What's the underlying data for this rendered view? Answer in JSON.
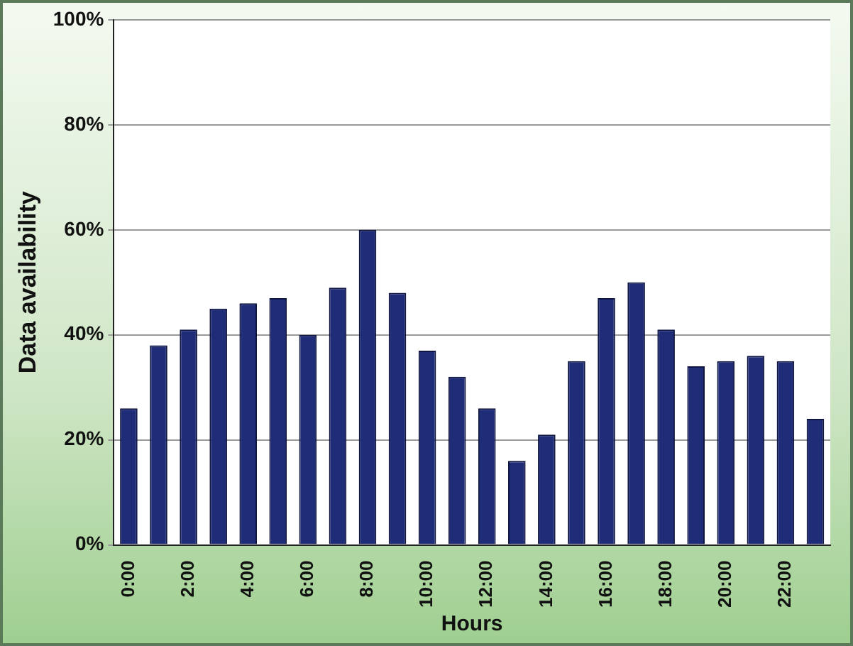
{
  "chart_data": {
    "type": "bar",
    "xlabel": "Hours",
    "ylabel": "Data availability",
    "categories": [
      "0:00",
      null,
      "2:00",
      null,
      "4:00",
      null,
      "6:00",
      null,
      "8:00",
      null,
      "10:00",
      null,
      "12:00",
      null,
      "14:00",
      null,
      "16:00",
      null,
      "18:00",
      null,
      "20:00",
      null,
      "22:00",
      null
    ],
    "values": [
      26,
      38,
      41,
      45,
      46,
      47,
      40,
      49,
      60,
      48,
      37,
      32,
      26,
      16,
      21,
      35,
      47,
      50,
      41,
      34,
      35,
      36,
      35,
      24
    ],
    "color": "#1f2c78",
    "ylim": [
      0,
      100
    ],
    "yticks": [
      {
        "value": 0,
        "label": "0%"
      },
      {
        "value": 20,
        "label": "20%"
      },
      {
        "value": 40,
        "label": "40%"
      },
      {
        "value": 60,
        "label": "60%"
      },
      {
        "value": 80,
        "label": "80%"
      },
      {
        "value": 100,
        "label": "100%"
      }
    ],
    "grid": "y",
    "legend": false
  }
}
